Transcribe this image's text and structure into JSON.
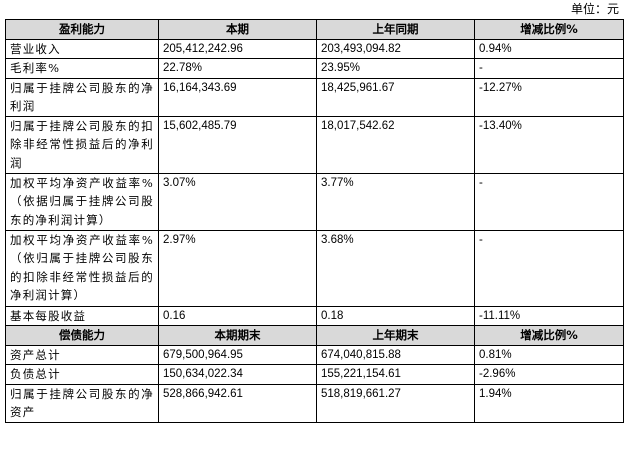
{
  "unit_label": "单位：元",
  "profit_section": {
    "headers": [
      "盈利能力",
      "本期",
      "上年同期",
      "增减比例%"
    ],
    "rows": [
      {
        "label": "营业收入",
        "current": "205,412,242.96",
        "previous": "203,493,094.82",
        "change": "0.94%"
      },
      {
        "label": "毛利率%",
        "current": "22.78%",
        "previous": "23.95%",
        "change": "-"
      },
      {
        "label": "归属于挂牌公司股东的净利润",
        "current": "16,164,343.69",
        "previous": "18,425,961.67",
        "change": "-12.27%"
      },
      {
        "label": "归属于挂牌公司股东的扣除非经常性损益后的净利润",
        "current": "15,602,485.79",
        "previous": "18,017,542.62",
        "change": "-13.40%"
      },
      {
        "label": "加权平均净资产收益率%（依据归属于挂牌公司股东的净利润计算）",
        "current": "3.07%",
        "previous": "3.77%",
        "change": "-"
      },
      {
        "label": "加权平均净资产收益率%（依归属于挂牌公司股东的扣除非经常性损益后的净利润计算）",
        "current": "2.97%",
        "previous": "3.68%",
        "change": "-"
      },
      {
        "label": "基本每股收益",
        "current": "0.16",
        "previous": "0.18",
        "change": "-11.11%"
      }
    ]
  },
  "solvency_section": {
    "headers": [
      "偿债能力",
      "本期期末",
      "上年期末",
      "增减比例%"
    ],
    "rows": [
      {
        "label": "资产总计",
        "current": "679,500,964.95",
        "previous": "674,040,815.88",
        "change": "0.81%"
      },
      {
        "label": "负债总计",
        "current": "150,634,022.34",
        "previous": "155,221,154.61",
        "change": "-2.96%"
      },
      {
        "label": "归属于挂牌公司股东的净资产",
        "current": "528,866,942.61",
        "previous": "518,819,661.27",
        "change": "1.94%"
      }
    ]
  }
}
